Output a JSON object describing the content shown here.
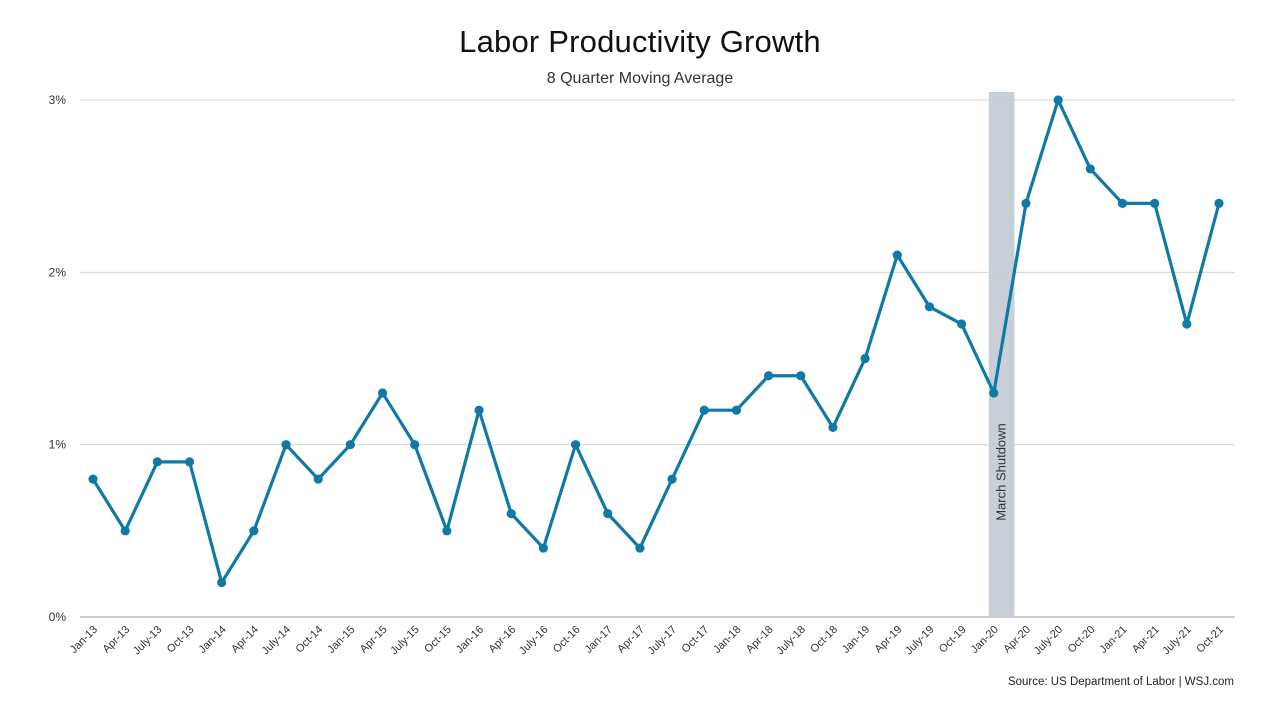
{
  "chart_data": {
    "type": "line",
    "title": "Labor Productivity Growth",
    "subtitle": "8 Quarter Moving Average",
    "source": "Source: US Department of Labor | WSJ.com",
    "ylim": [
      0,
      3
    ],
    "yticks": [
      "0%",
      "1%",
      "2%",
      "3%"
    ],
    "ytick_values": [
      0,
      1,
      2,
      3
    ],
    "grid": true,
    "categories": [
      "Jan-13",
      "Apr-13",
      "July-13",
      "Oct-13",
      "Jan-14",
      "Apr-14",
      "July-14",
      "Oct-14",
      "Jan-15",
      "Apr-15",
      "July-15",
      "Oct-15",
      "Jan-16",
      "Apr-16",
      "July-16",
      "Oct-16",
      "Jan-17",
      "Apr-17",
      "July-17",
      "Oct-17",
      "Jan-18",
      "Apr-18",
      "July-18",
      "Oct-18",
      "Jan-19",
      "Apr-19",
      "July-19",
      "Oct-19",
      "Jan-20",
      "Apr-20",
      "July-20",
      "Oct-20",
      "Jan-21",
      "Apr-21",
      "July-21",
      "Oct-21"
    ],
    "series": [
      {
        "color": "#0f7aa6",
        "values": [
          0.8,
          0.5,
          0.9,
          0.9,
          0.2,
          0.5,
          1.0,
          0.8,
          1.0,
          1.3,
          1.0,
          0.5,
          1.2,
          0.6,
          0.4,
          1.0,
          0.6,
          0.4,
          0.8,
          1.2,
          1.2,
          1.4,
          1.4,
          1.1,
          1.5,
          2.1,
          1.8,
          1.7,
          1.3,
          2.4,
          3.0,
          2.6,
          2.4,
          2.4,
          1.7,
          2.4
        ]
      }
    ],
    "annotations": [
      {
        "type": "shaded-band",
        "label": "March Shutdown",
        "from_category": "Jan-20",
        "to_category": "Apr-20",
        "color": "#c5ccd4"
      }
    ]
  }
}
